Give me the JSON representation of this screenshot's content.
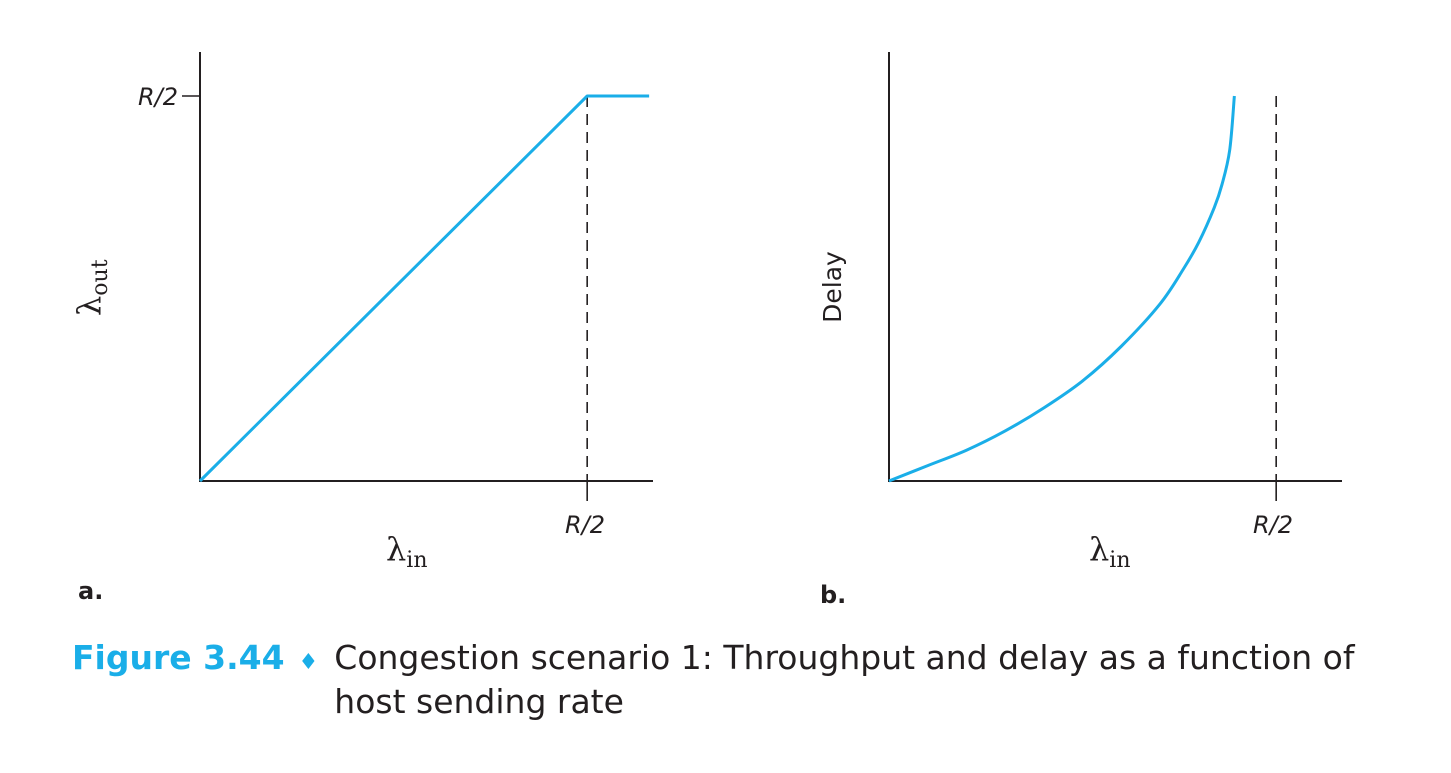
{
  "chart_data": [
    {
      "type": "line",
      "panel_label": "a.",
      "xlabel": {
        "symbol": "λ",
        "subscript": "in"
      },
      "ylabel": {
        "symbol": "λ",
        "subscript": "out"
      },
      "xlim": [
        0,
        0.585
      ],
      "ylim": [
        0,
        0.5
      ],
      "x_ticks": [
        {
          "value": 0.5,
          "label": "R/2"
        }
      ],
      "y_ticks": [
        {
          "value": 0.5,
          "label": "R/2"
        }
      ],
      "series": [
        {
          "x": [
            0,
            0.5,
            0.58
          ],
          "y": [
            0,
            0.5,
            0.5
          ]
        }
      ],
      "guides": [
        {
          "x": 0.5,
          "style": "dashed"
        }
      ],
      "grid": false,
      "color": "#1aaee8"
    },
    {
      "type": "line",
      "panel_label": "b.",
      "xlabel": {
        "symbol": "λ",
        "subscript": "in"
      },
      "ylabel": {
        "text": "Delay"
      },
      "xlim": [
        0,
        0.585
      ],
      "ylim": [
        0,
        1
      ],
      "x_ticks": [
        {
          "value": 0.5,
          "label": "R/2"
        }
      ],
      "series": [
        {
          "x": [
            0,
            0.05,
            0.1,
            0.15,
            0.2,
            0.25,
            0.3,
            0.35,
            0.38,
            0.4,
            0.42,
            0.43,
            0.44,
            0.446
          ],
          "y": [
            0,
            0.04,
            0.08,
            0.13,
            0.19,
            0.26,
            0.35,
            0.46,
            0.55,
            0.62,
            0.71,
            0.77,
            0.86,
            1.0
          ]
        }
      ],
      "guides": [
        {
          "x": 0.5,
          "style": "dashed"
        }
      ],
      "grid": false,
      "color": "#1aaee8"
    }
  ],
  "caption": {
    "label": "Figure 3.44",
    "separator": "♦",
    "text": "Congestion scenario 1: Throughput and delay as a function of host sending rate"
  }
}
